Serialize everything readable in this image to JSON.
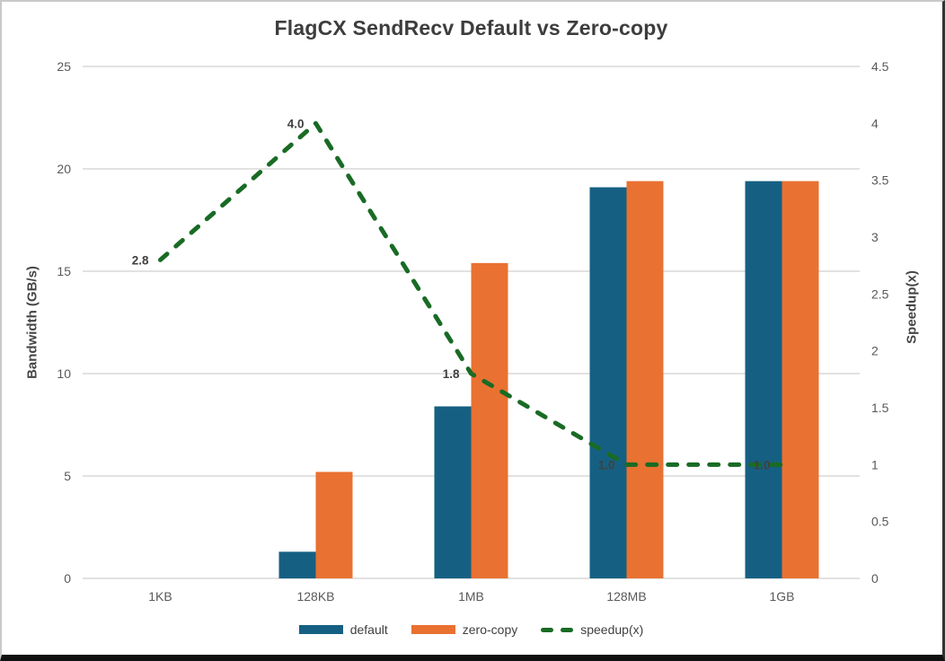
{
  "chart_data": {
    "type": "bar+line-combo",
    "title": "FlagCX SendRecv Default vs Zero-copy",
    "categories": [
      "1KB",
      "128KB",
      "1MB",
      "128MB",
      "1GB"
    ],
    "series": [
      {
        "name": "default",
        "type": "bar",
        "axis": "left",
        "color": "#156082",
        "values": [
          0,
          1.3,
          8.4,
          19.1,
          19.4
        ]
      },
      {
        "name": "zero-copy",
        "type": "bar",
        "axis": "left",
        "color": "#E97132",
        "values": [
          0,
          5.2,
          15.4,
          19.4,
          19.4
        ]
      },
      {
        "name": "speedup(x)",
        "type": "line",
        "style": "dashed",
        "axis": "right",
        "color": "#196B24",
        "values": [
          2.8,
          4.0,
          1.8,
          1.0,
          1.0
        ],
        "data_labels": [
          "2.8",
          "4.0",
          "1.8",
          "1.0",
          "1.0"
        ]
      }
    ],
    "axes": {
      "left": {
        "title": "Bandwidth (GB/s)",
        "min": 0,
        "max": 25,
        "ticks": [
          "0",
          "5",
          "10",
          "15",
          "20",
          "25"
        ]
      },
      "right": {
        "title": "Speedup(x)",
        "min": 0,
        "max": 4.5,
        "ticks": [
          "0",
          "0.5",
          "1",
          "1.5",
          "2",
          "2.5",
          "3",
          "3.5",
          "4",
          "4.5"
        ]
      },
      "x": {
        "ticks": [
          "1KB",
          "128KB",
          "1MB",
          "128MB",
          "1GB"
        ]
      }
    },
    "grid": true,
    "gridline_color": "#d9d9d9",
    "tick_label_color": "#595959",
    "data_label_color": "#404040",
    "legend": {
      "position": "bottom",
      "items": [
        {
          "label": "default",
          "color": "#156082",
          "marker": "bar"
        },
        {
          "label": "zero-copy",
          "color": "#E97132",
          "marker": "bar"
        },
        {
          "label": "speedup(x)",
          "color": "#196B24",
          "marker": "dashed-line"
        }
      ]
    }
  }
}
